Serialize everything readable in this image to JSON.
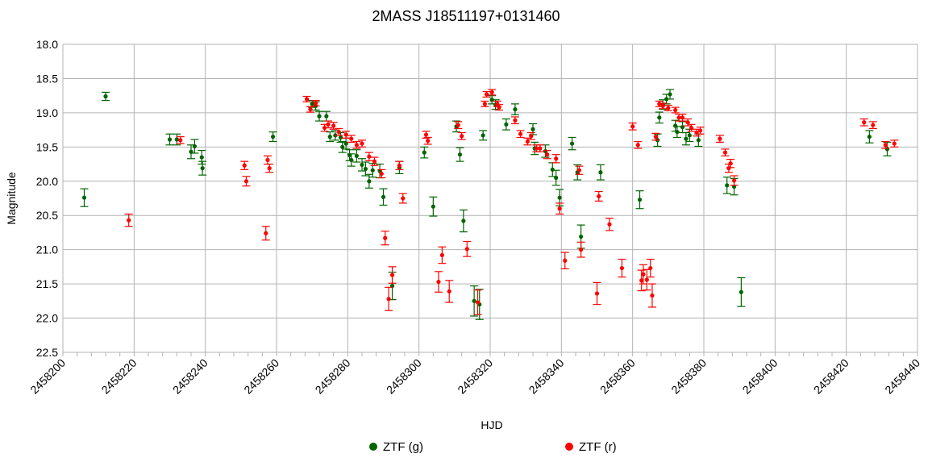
{
  "chart_data": {
    "type": "scatter",
    "title": "2MASS J18511197+0131460",
    "xlabel": "HJD",
    "ylabel": "Magnitude",
    "xlim": [
      2458200,
      2458440
    ],
    "ylim": [
      18.0,
      22.5
    ],
    "y_inverted": true,
    "grid": true,
    "legend_position": "bottom",
    "x_ticks": [
      "2458200",
      "2458220",
      "2458240",
      "2458260",
      "2458280",
      "2458300",
      "2458320",
      "2458340",
      "2458360",
      "2458380",
      "2458400",
      "2458420",
      "2458440"
    ],
    "y_ticks": [
      "18.0",
      "18.5",
      "19.0",
      "19.5",
      "20.0",
      "20.5",
      "21.0",
      "21.5",
      "22.0",
      "22.5"
    ],
    "series": [
      {
        "name": "ZTF (g)",
        "color": "#006400",
        "points": [
          [
            2458206.0,
            20.24,
            0.13
          ],
          [
            2458212.0,
            18.76,
            0.06
          ],
          [
            2458230.0,
            19.39,
            0.08
          ],
          [
            2458232.0,
            19.39,
            0.08
          ],
          [
            2458236.0,
            19.57,
            0.1
          ],
          [
            2458237.0,
            19.49,
            0.1
          ],
          [
            2458239.0,
            19.65,
            0.1
          ],
          [
            2458239.2,
            19.81,
            0.1
          ],
          [
            2458259.0,
            19.35,
            0.07
          ],
          [
            2458270.0,
            18.87,
            0.05
          ],
          [
            2458271.0,
            18.9,
            0.06
          ],
          [
            2458272.0,
            19.05,
            0.07
          ],
          [
            2458274.0,
            19.05,
            0.07
          ],
          [
            2458275.0,
            19.35,
            0.07
          ],
          [
            2458276.5,
            19.33,
            0.07
          ],
          [
            2458278.0,
            19.36,
            0.07
          ],
          [
            2458278.5,
            19.5,
            0.08
          ],
          [
            2458279.5,
            19.45,
            0.08
          ],
          [
            2458280.5,
            19.62,
            0.08
          ],
          [
            2458281.0,
            19.69,
            0.09
          ],
          [
            2458282.5,
            19.63,
            0.09
          ],
          [
            2458284.0,
            19.76,
            0.09
          ],
          [
            2458285.0,
            19.82,
            0.1
          ],
          [
            2458286.0,
            20.0,
            0.1
          ],
          [
            2458287.0,
            19.84,
            0.1
          ],
          [
            2458289.0,
            19.85,
            0.1
          ],
          [
            2458290.0,
            20.23,
            0.12
          ],
          [
            2458292.5,
            21.53,
            0.2
          ],
          [
            2458294.5,
            19.8,
            0.09
          ],
          [
            2458301.5,
            19.58,
            0.08
          ],
          [
            2458304.0,
            20.37,
            0.14
          ],
          [
            2458310.5,
            19.2,
            0.08
          ],
          [
            2458311.5,
            19.61,
            0.1
          ],
          [
            2458312.5,
            20.58,
            0.16
          ],
          [
            2458315.5,
            21.75,
            0.22
          ],
          [
            2458317.0,
            21.8,
            0.22
          ],
          [
            2458318.0,
            19.33,
            0.07
          ],
          [
            2458320.5,
            18.81,
            0.06
          ],
          [
            2458321.5,
            18.88,
            0.07
          ],
          [
            2458324.5,
            19.17,
            0.08
          ],
          [
            2458327.0,
            18.95,
            0.08
          ],
          [
            2458332.0,
            19.24,
            0.08
          ],
          [
            2458332.5,
            19.52,
            0.09
          ],
          [
            2458335.5,
            19.56,
            0.09
          ],
          [
            2458337.5,
            19.83,
            0.1
          ],
          [
            2458338.5,
            19.95,
            0.11
          ],
          [
            2458339.5,
            20.24,
            0.12
          ],
          [
            2458343.0,
            19.45,
            0.09
          ],
          [
            2458344.5,
            19.87,
            0.11
          ],
          [
            2458345.5,
            20.81,
            0.17
          ],
          [
            2458351.0,
            19.87,
            0.11
          ],
          [
            2458362.0,
            20.27,
            0.13
          ],
          [
            2458367.0,
            19.4,
            0.09
          ],
          [
            2458367.5,
            19.07,
            0.08
          ],
          [
            2458368.5,
            18.88,
            0.07
          ],
          [
            2458369.5,
            18.8,
            0.07
          ],
          [
            2458370.5,
            18.73,
            0.07
          ],
          [
            2458372.0,
            19.19,
            0.08
          ],
          [
            2458372.5,
            19.28,
            0.08
          ],
          [
            2458374.0,
            19.21,
            0.08
          ],
          [
            2458375.0,
            19.38,
            0.09
          ],
          [
            2458376.0,
            19.33,
            0.09
          ],
          [
            2458378.5,
            19.4,
            0.09
          ],
          [
            2458386.5,
            20.06,
            0.12
          ],
          [
            2458388.5,
            20.08,
            0.12
          ],
          [
            2458390.5,
            21.62,
            0.21
          ],
          [
            2458426.5,
            19.35,
            0.09
          ],
          [
            2458431.5,
            19.53,
            0.1
          ]
        ]
      },
      {
        "name": "ZTF (r)",
        "color": "#ff0000",
        "points": [
          [
            2458218.5,
            20.57,
            0.09
          ],
          [
            2458233.0,
            19.4,
            0.05
          ],
          [
            2458251.0,
            19.77,
            0.06
          ],
          [
            2458251.5,
            20.0,
            0.07
          ],
          [
            2458257.0,
            20.76,
            0.1
          ],
          [
            2458257.5,
            19.69,
            0.06
          ],
          [
            2458258.0,
            19.81,
            0.06
          ],
          [
            2458268.5,
            18.8,
            0.04
          ],
          [
            2458269.5,
            18.95,
            0.04
          ],
          [
            2458271.0,
            18.86,
            0.04
          ],
          [
            2458273.5,
            19.22,
            0.05
          ],
          [
            2458274.5,
            19.17,
            0.05
          ],
          [
            2458276.0,
            19.19,
            0.05
          ],
          [
            2458277.5,
            19.28,
            0.05
          ],
          [
            2458279.5,
            19.32,
            0.05
          ],
          [
            2458281.0,
            19.38,
            0.05
          ],
          [
            2458282.5,
            19.47,
            0.05
          ],
          [
            2458284.0,
            19.45,
            0.05
          ],
          [
            2458286.0,
            19.64,
            0.06
          ],
          [
            2458287.5,
            19.71,
            0.06
          ],
          [
            2458289.5,
            19.89,
            0.06
          ],
          [
            2458290.5,
            20.83,
            0.1
          ],
          [
            2458291.5,
            21.72,
            0.17
          ],
          [
            2458292.5,
            21.37,
            0.12
          ],
          [
            2458294.5,
            19.77,
            0.06
          ],
          [
            2458295.5,
            20.25,
            0.07
          ],
          [
            2458302.0,
            19.32,
            0.05
          ],
          [
            2458302.5,
            19.41,
            0.05
          ],
          [
            2458305.5,
            21.47,
            0.15
          ],
          [
            2458306.5,
            21.08,
            0.12
          ],
          [
            2458308.5,
            21.61,
            0.16
          ],
          [
            2458311.0,
            19.18,
            0.05
          ],
          [
            2458312.0,
            19.34,
            0.05
          ],
          [
            2458313.5,
            20.99,
            0.11
          ],
          [
            2458316.5,
            21.77,
            0.18
          ],
          [
            2458318.5,
            18.87,
            0.04
          ],
          [
            2458319.0,
            18.73,
            0.04
          ],
          [
            2458320.5,
            18.7,
            0.04
          ],
          [
            2458322.0,
            18.87,
            0.04
          ],
          [
            2458322.5,
            18.92,
            0.04
          ],
          [
            2458327.0,
            19.11,
            0.05
          ],
          [
            2458328.5,
            19.31,
            0.05
          ],
          [
            2458330.5,
            19.42,
            0.05
          ],
          [
            2458331.5,
            19.34,
            0.05
          ],
          [
            2458333.0,
            19.52,
            0.05
          ],
          [
            2458334.0,
            19.52,
            0.05
          ],
          [
            2458336.0,
            19.61,
            0.06
          ],
          [
            2458338.5,
            19.67,
            0.06
          ],
          [
            2458339.5,
            20.4,
            0.08
          ],
          [
            2458341.0,
            21.16,
            0.12
          ],
          [
            2458345.0,
            19.84,
            0.06
          ],
          [
            2458345.5,
            21.0,
            0.11
          ],
          [
            2458350.0,
            21.64,
            0.16
          ],
          [
            2458350.5,
            20.22,
            0.07
          ],
          [
            2458353.5,
            20.63,
            0.09
          ],
          [
            2458357.0,
            21.27,
            0.13
          ],
          [
            2458360.0,
            19.2,
            0.05
          ],
          [
            2458361.5,
            19.47,
            0.05
          ],
          [
            2458362.5,
            21.45,
            0.15
          ],
          [
            2458363.0,
            21.36,
            0.14
          ],
          [
            2458364.0,
            21.44,
            0.15
          ],
          [
            2458365.0,
            21.27,
            0.13
          ],
          [
            2458365.5,
            21.67,
            0.17
          ],
          [
            2458366.5,
            19.35,
            0.05
          ],
          [
            2458367.5,
            18.87,
            0.04
          ],
          [
            2458368.5,
            18.9,
            0.04
          ],
          [
            2458370.0,
            18.93,
            0.04
          ],
          [
            2458372.0,
            18.96,
            0.04
          ],
          [
            2458373.0,
            19.07,
            0.05
          ],
          [
            2458374.0,
            19.07,
            0.05
          ],
          [
            2458375.5,
            19.14,
            0.05
          ],
          [
            2458376.5,
            19.22,
            0.05
          ],
          [
            2458378.0,
            19.29,
            0.05
          ],
          [
            2458379.0,
            19.26,
            0.05
          ],
          [
            2458384.5,
            19.38,
            0.05
          ],
          [
            2458386.0,
            19.58,
            0.05
          ],
          [
            2458387.0,
            19.81,
            0.06
          ],
          [
            2458387.5,
            19.74,
            0.06
          ],
          [
            2458388.5,
            19.99,
            0.07
          ],
          [
            2458425.0,
            19.14,
            0.05
          ],
          [
            2458427.5,
            19.18,
            0.05
          ],
          [
            2458431.0,
            19.47,
            0.05
          ],
          [
            2458433.5,
            19.45,
            0.05
          ]
        ]
      }
    ]
  }
}
